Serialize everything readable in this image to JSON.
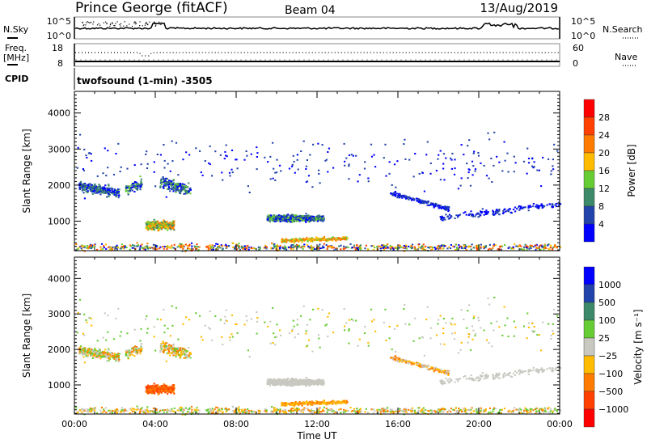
{
  "header": {
    "station": "Prince George (fitACF)",
    "beam": "Beam 04",
    "date": "13/Aug/2019"
  },
  "status_panels": {
    "nsky_label": "N.Sky",
    "nsearch_label": "N.Search",
    "nsky_ticks": [
      "10^5",
      "10^0"
    ],
    "nsearch_ticks": [
      "10^5",
      "10^0"
    ],
    "freq_label_1": "Freq.",
    "freq_label_2": "[MHz]",
    "freq_ticks": [
      "18",
      "8"
    ],
    "nave_label": "Nave",
    "nave_ticks": [
      "60",
      "0"
    ],
    "cpid_label": "CPID",
    "cpid_value": "twofsound (1-min) -3505"
  },
  "chart_data": [
    {
      "type": "scatter",
      "name": "power",
      "ylabel": "Slant Range [km]",
      "xlabel": "Time UT",
      "xlim": [
        0,
        24
      ],
      "ylim": [
        180,
        4600
      ],
      "yticks": [
        1000,
        2000,
        3000,
        4000
      ],
      "ytick_labels": [
        "1000",
        "2000",
        "3000",
        "4000"
      ],
      "colorbar": {
        "label": "Power [dB]",
        "tick_labels": [
          "28",
          "24",
          "20",
          "16",
          "12",
          "8",
          "4"
        ],
        "colors": [
          "#ff0000",
          "#ff4000",
          "#ff7a00",
          "#ffbb00",
          "#66cc33",
          "#3d8a6a",
          "#2244aa",
          "#0000ff"
        ]
      }
    },
    {
      "type": "scatter",
      "name": "velocity",
      "ylabel": "Slant Range [km]",
      "xlabel": "Time UT",
      "xlim": [
        0,
        24
      ],
      "ylim": [
        180,
        4600
      ],
      "yticks": [
        1000,
        2000,
        3000,
        4000
      ],
      "ytick_labels": [
        "1000",
        "2000",
        "3000",
        "4000"
      ],
      "colorbar": {
        "label": "Velocity [m s⁻¹]",
        "tick_labels": [
          "1000",
          "500",
          "100",
          "25",
          "−25",
          "−100",
          "−500",
          "−1000"
        ],
        "colors": [
          "#0000ff",
          "#2244aa",
          "#3d8a6a",
          "#66cc33",
          "#c8c8c0",
          "#ffbb00",
          "#ff7a00",
          "#ff4000",
          "#ff0000"
        ]
      }
    }
  ],
  "x_axis": {
    "ticks": [
      0,
      4,
      8,
      12,
      16,
      20,
      24
    ],
    "tick_labels": [
      "00:00",
      "04:00",
      "08:00",
      "12:00",
      "16:00",
      "20:00",
      "00:00"
    ],
    "label": "Time UT"
  },
  "echo_regions": [
    {
      "t": [
        0.2,
        2.2
      ],
      "r": [
        2000,
        1800
      ],
      "s": 120,
      "n": 260,
      "p": [
        5,
        7
      ],
      "v": [
        3,
        6
      ]
    },
    {
      "t": [
        2.5,
        3.3
      ],
      "r": [
        1900,
        2100
      ],
      "s": 150,
      "n": 80,
      "p": [
        4,
        7
      ],
      "v": [
        3,
        6
      ]
    },
    {
      "t": [
        4.2,
        5.7
      ],
      "r": [
        2100,
        1850
      ],
      "s": 160,
      "n": 180,
      "p": [
        4,
        7
      ],
      "v": [
        3,
        6
      ]
    },
    {
      "t": [
        3.5,
        4.9
      ],
      "r": [
        900,
        900
      ],
      "s": 110,
      "n": 320,
      "p": [
        2,
        5
      ],
      "v": [
        6,
        7
      ]
    },
    {
      "t": [
        9.5,
        12.3
      ],
      "r": [
        1100,
        1100
      ],
      "s": 90,
      "n": 550,
      "p": [
        4,
        7
      ],
      "v": [
        4,
        4
      ]
    },
    {
      "t": [
        10.2,
        13.5
      ],
      "r": [
        480,
        540
      ],
      "s": 50,
      "n": 220,
      "p": [
        2,
        4
      ],
      "v": [
        5,
        6
      ]
    },
    {
      "t": [
        15.6,
        18.5
      ],
      "r": [
        1800,
        1350
      ],
      "s": 60,
      "n": 180,
      "p": [
        6,
        7
      ],
      "v": [
        4,
        6
      ]
    },
    {
      "t": [
        18.0,
        24.0
      ],
      "r": [
        1100,
        1500
      ],
      "s": 80,
      "n": 160,
      "p": [
        6,
        7
      ],
      "v": [
        4,
        4
      ]
    },
    {
      "t": [
        0.0,
        24.0
      ],
      "r": [
        300,
        300
      ],
      "s": 90,
      "n": 700,
      "p": [
        1,
        7
      ],
      "v": [
        3,
        6
      ]
    },
    {
      "t": [
        0.0,
        24.0
      ],
      "r": [
        2600,
        2600
      ],
      "s": 700,
      "n": 260,
      "p": [
        6,
        7
      ],
      "v": [
        3,
        5
      ]
    }
  ]
}
